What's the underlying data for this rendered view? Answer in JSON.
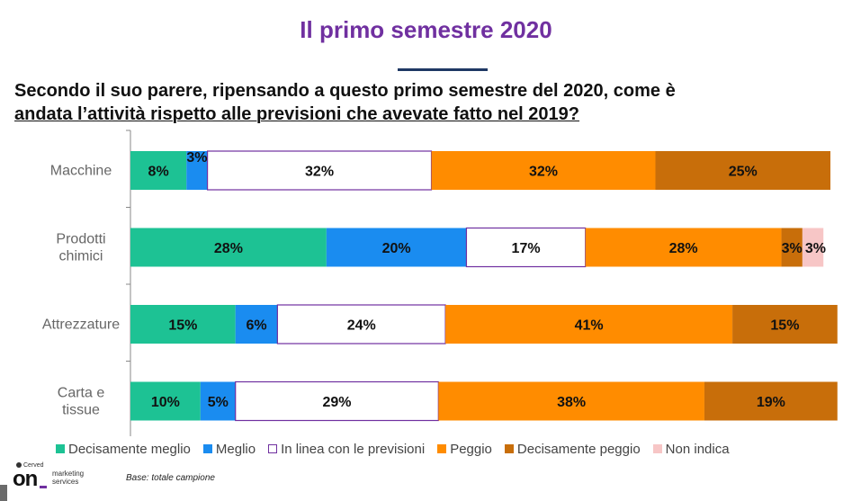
{
  "title": "Il primo semestre 2020",
  "question_line1": "Secondo il suo parere, ripensando a questo primo semestre del 2020, come è",
  "question_line2": "andata l’attività rispetto alle previsioni che avevate fatto nel 2019?",
  "base_note": "Base: totale campione",
  "logo": {
    "brand_small": "Cerved",
    "brand": "on",
    "line1": "marketing",
    "line2": "services"
  },
  "chart_data": {
    "type": "bar",
    "orientation": "horizontal",
    "stacked": true,
    "value_unit": "%",
    "categories": [
      [
        "Macchine"
      ],
      [
        "Prodotti",
        "chimici"
      ],
      [
        "Attrezzature"
      ],
      [
        "Carta e",
        "tissue"
      ]
    ],
    "series": [
      {
        "name": "Decisamente meglio",
        "color": "#1dc294",
        "values": [
          8,
          28,
          15,
          10
        ]
      },
      {
        "name": "Meglio",
        "color": "#1a8cf0",
        "values": [
          3,
          20,
          6,
          5
        ]
      },
      {
        "name": "In linea con le previsioni",
        "color": "#ffffff",
        "border": "#7030a0",
        "values": [
          32,
          17,
          24,
          29
        ]
      },
      {
        "name": "Peggio",
        "color": "#ff8c00",
        "values": [
          32,
          28,
          41,
          38
        ]
      },
      {
        "name": "Decisamente peggio",
        "color": "#c86e0a",
        "values": [
          25,
          3,
          15,
          19
        ]
      },
      {
        "name": "Non indica",
        "color": "#f7c6c6",
        "values": [
          0,
          3,
          0,
          0
        ]
      }
    ],
    "xlim": [
      0,
      100
    ],
    "legend_position": "bottom"
  }
}
